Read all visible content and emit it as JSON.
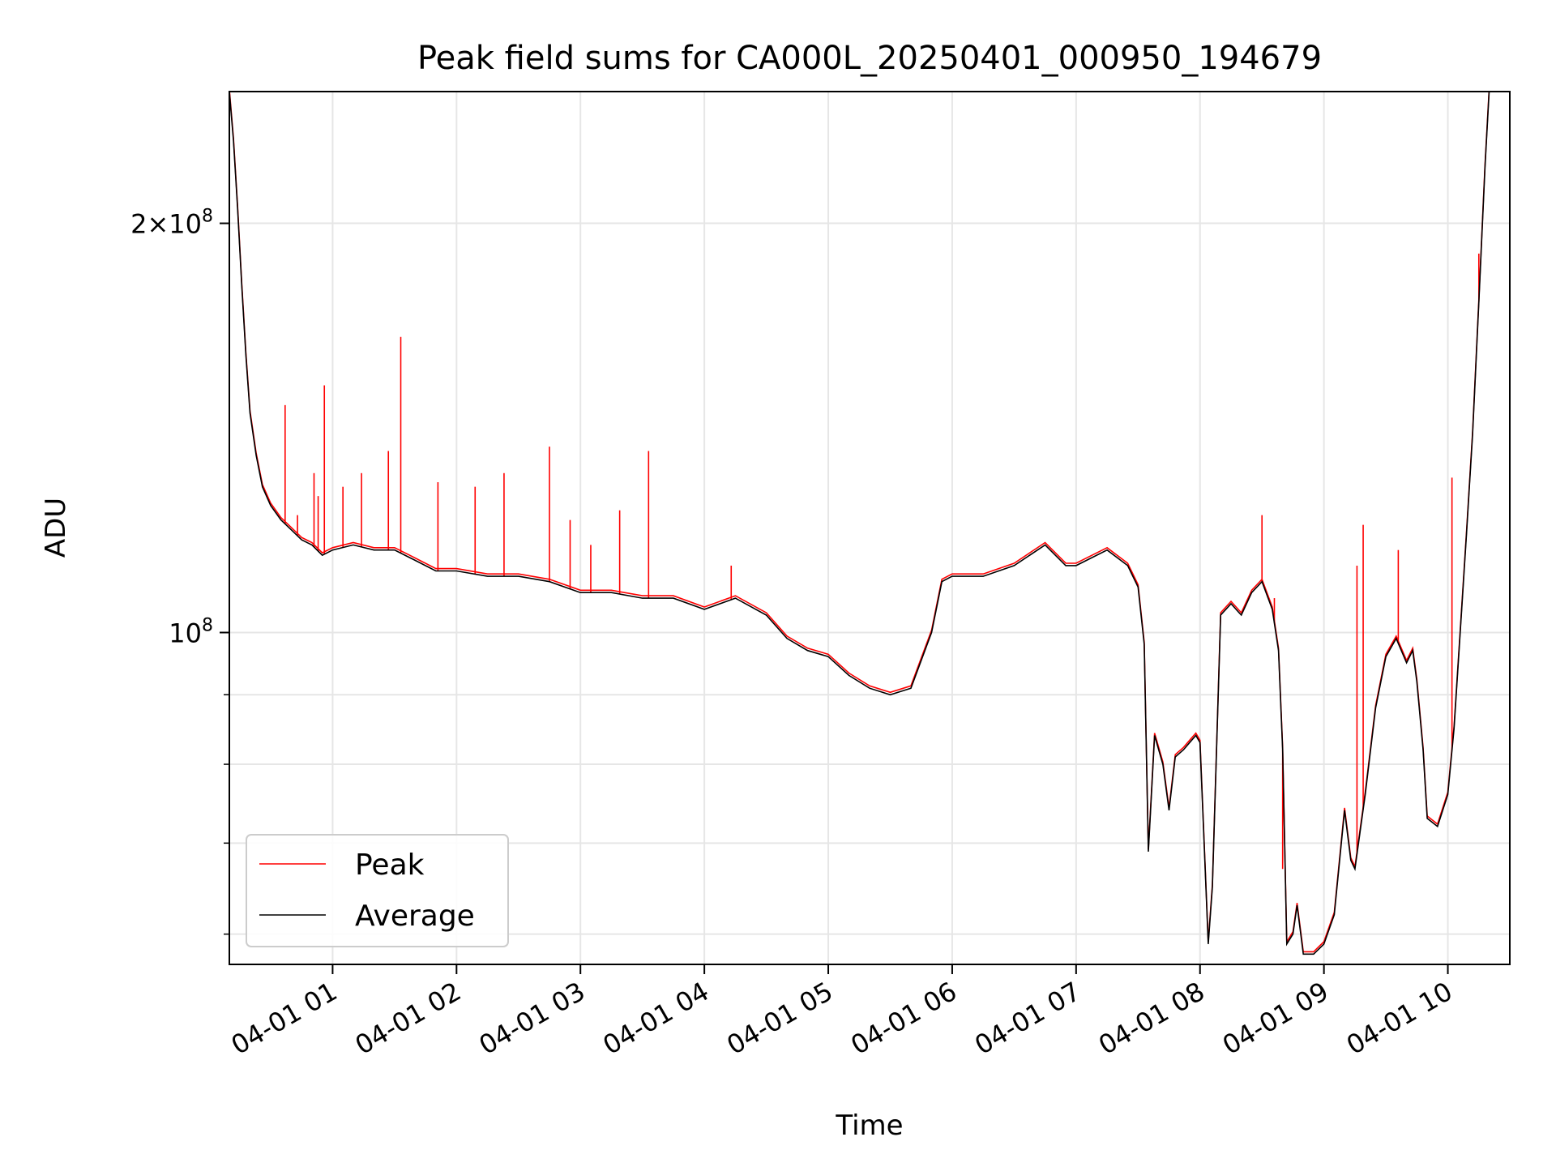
{
  "chart_data": {
    "type": "line",
    "title": "Peak field sums for CA000L_20250401_000950_194679",
    "xlabel": "Time",
    "ylabel": "ADU",
    "y_scale": "log",
    "ylim": [
      57000000,
      250000000
    ],
    "xlim": [
      "2025-04-01 00:10",
      "2025-04-01 10:30"
    ],
    "grid": true,
    "legend_position": "lower-left",
    "x_tick_labels": [
      "04-01 01",
      "04-01 02",
      "04-01 03",
      "04-01 04",
      "04-01 05",
      "04-01 06",
      "04-01 07",
      "04-01 08",
      "04-01 09",
      "04-01 10"
    ],
    "x_ticks": [
      "2025-04-01 01:00",
      "2025-04-01 02:00",
      "2025-04-01 03:00",
      "2025-04-01 04:00",
      "2025-04-01 05:00",
      "2025-04-01 06:00",
      "2025-04-01 07:00",
      "2025-04-01 08:00",
      "2025-04-01 09:00",
      "2025-04-01 10:00"
    ],
    "y_major_ticks": [
      {
        "value": 100000000,
        "base": "10",
        "exp": "8"
      },
      {
        "value": 200000000,
        "base": "2×10",
        "exp": "8"
      }
    ],
    "y_minor_ticks": [
      60000000,
      70000000,
      80000000,
      90000000
    ],
    "colors": {
      "peak": "#ff0000",
      "average": "#000000"
    },
    "series": [
      {
        "name": "Average",
        "color": "#000000",
        "points": [
          [
            "2025-04-01 00:10",
            250000000
          ],
          [
            "2025-04-01 00:12",
            230000000
          ],
          [
            "2025-04-01 00:14",
            205000000
          ],
          [
            "2025-04-01 00:16",
            180000000
          ],
          [
            "2025-04-01 00:18",
            160000000
          ],
          [
            "2025-04-01 00:20",
            145000000
          ],
          [
            "2025-04-01 00:23",
            135000000
          ],
          [
            "2025-04-01 00:26",
            128000000
          ],
          [
            "2025-04-01 00:30",
            124000000
          ],
          [
            "2025-04-01 00:35",
            121000000
          ],
          [
            "2025-04-01 00:40",
            119000000
          ],
          [
            "2025-04-01 00:45",
            117000000
          ],
          [
            "2025-04-01 00:50",
            116000000
          ],
          [
            "2025-04-01 00:55",
            114000000
          ],
          [
            "2025-04-01 01:00",
            115000000
          ],
          [
            "2025-04-01 01:10",
            116000000
          ],
          [
            "2025-04-01 01:20",
            115000000
          ],
          [
            "2025-04-01 01:30",
            115000000
          ],
          [
            "2025-04-01 01:40",
            113000000
          ],
          [
            "2025-04-01 01:50",
            111000000
          ],
          [
            "2025-04-01 02:00",
            111000000
          ],
          [
            "2025-04-01 02:15",
            110000000
          ],
          [
            "2025-04-01 02:30",
            110000000
          ],
          [
            "2025-04-01 02:45",
            109000000
          ],
          [
            "2025-04-01 03:00",
            107000000
          ],
          [
            "2025-04-01 03:15",
            107000000
          ],
          [
            "2025-04-01 03:30",
            106000000
          ],
          [
            "2025-04-01 03:45",
            106000000
          ],
          [
            "2025-04-01 04:00",
            104000000
          ],
          [
            "2025-04-01 04:15",
            106000000
          ],
          [
            "2025-04-01 04:30",
            103000000
          ],
          [
            "2025-04-01 04:40",
            99000000
          ],
          [
            "2025-04-01 04:50",
            97000000
          ],
          [
            "2025-04-01 05:00",
            96000000
          ],
          [
            "2025-04-01 05:10",
            93000000
          ],
          [
            "2025-04-01 05:20",
            91000000
          ],
          [
            "2025-04-01 05:30",
            90000000
          ],
          [
            "2025-04-01 05:40",
            91000000
          ],
          [
            "2025-04-01 05:50",
            100000000
          ],
          [
            "2025-04-01 05:55",
            109000000
          ],
          [
            "2025-04-01 06:00",
            110000000
          ],
          [
            "2025-04-01 06:15",
            110000000
          ],
          [
            "2025-04-01 06:30",
            112000000
          ],
          [
            "2025-04-01 06:45",
            116000000
          ],
          [
            "2025-04-01 06:55",
            112000000
          ],
          [
            "2025-04-01 07:00",
            112000000
          ],
          [
            "2025-04-01 07:15",
            115000000
          ],
          [
            "2025-04-01 07:25",
            112000000
          ],
          [
            "2025-04-01 07:30",
            108000000
          ],
          [
            "2025-04-01 07:33",
            98000000
          ],
          [
            "2025-04-01 07:35",
            69000000
          ],
          [
            "2025-04-01 07:38",
            84000000
          ],
          [
            "2025-04-01 07:42",
            80000000
          ],
          [
            "2025-04-01 07:45",
            74000000
          ],
          [
            "2025-04-01 07:48",
            81000000
          ],
          [
            "2025-04-01 07:52",
            82000000
          ],
          [
            "2025-04-01 07:55",
            83000000
          ],
          [
            "2025-04-01 07:58",
            84000000
          ],
          [
            "2025-04-01 08:00",
            83000000
          ],
          [
            "2025-04-01 08:02",
            70000000
          ],
          [
            "2025-04-01 08:04",
            59000000
          ],
          [
            "2025-04-01 08:06",
            65000000
          ],
          [
            "2025-04-01 08:10",
            103000000
          ],
          [
            "2025-04-01 08:15",
            105000000
          ],
          [
            "2025-04-01 08:20",
            103000000
          ],
          [
            "2025-04-01 08:25",
            107000000
          ],
          [
            "2025-04-01 08:30",
            109000000
          ],
          [
            "2025-04-01 08:35",
            104000000
          ],
          [
            "2025-04-01 08:38",
            97000000
          ],
          [
            "2025-04-01 08:40",
            82000000
          ],
          [
            "2025-04-01 08:42",
            59000000
          ],
          [
            "2025-04-01 08:45",
            60000000
          ],
          [
            "2025-04-01 08:47",
            63000000
          ],
          [
            "2025-04-01 08:50",
            58000000
          ],
          [
            "2025-04-01 08:55",
            58000000
          ],
          [
            "2025-04-01 09:00",
            59000000
          ],
          [
            "2025-04-01 09:05",
            62000000
          ],
          [
            "2025-04-01 09:10",
            74000000
          ],
          [
            "2025-04-01 09:13",
            68000000
          ],
          [
            "2025-04-01 09:15",
            67000000
          ],
          [
            "2025-04-01 09:20",
            76000000
          ],
          [
            "2025-04-01 09:25",
            88000000
          ],
          [
            "2025-04-01 09:30",
            96000000
          ],
          [
            "2025-04-01 09:35",
            99000000
          ],
          [
            "2025-04-01 09:40",
            95000000
          ],
          [
            "2025-04-01 09:43",
            97000000
          ],
          [
            "2025-04-01 09:45",
            92000000
          ],
          [
            "2025-04-01 09:48",
            82000000
          ],
          [
            "2025-04-01 09:50",
            73000000
          ],
          [
            "2025-04-01 09:55",
            72000000
          ],
          [
            "2025-04-01 10:00",
            76000000
          ],
          [
            "2025-04-01 10:03",
            85000000
          ],
          [
            "2025-04-01 10:06",
            100000000
          ],
          [
            "2025-04-01 10:09",
            118000000
          ],
          [
            "2025-04-01 10:12",
            140000000
          ],
          [
            "2025-04-01 10:15",
            175000000
          ],
          [
            "2025-04-01 10:18",
            220000000
          ],
          [
            "2025-04-01 10:20",
            250000000
          ]
        ]
      },
      {
        "name": "Peak",
        "color": "#ff0000",
        "description_note": "Peak closely follows Average with isolated upward spikes",
        "spikes": [
          [
            "2025-04-01 00:37",
            147000000
          ],
          [
            "2025-04-01 00:43",
            122000000
          ],
          [
            "2025-04-01 00:51",
            131000000
          ],
          [
            "2025-04-01 00:53",
            126000000
          ],
          [
            "2025-04-01 00:56",
            152000000
          ],
          [
            "2025-04-01 01:05",
            128000000
          ],
          [
            "2025-04-01 01:14",
            131000000
          ],
          [
            "2025-04-01 01:27",
            136000000
          ],
          [
            "2025-04-01 01:33",
            165000000
          ],
          [
            "2025-04-01 01:51",
            129000000
          ],
          [
            "2025-04-01 02:09",
            128000000
          ],
          [
            "2025-04-01 02:23",
            131000000
          ],
          [
            "2025-04-01 02:45",
            137000000
          ],
          [
            "2025-04-01 02:55",
            121000000
          ],
          [
            "2025-04-01 03:05",
            116000000
          ],
          [
            "2025-04-01 03:19",
            123000000
          ],
          [
            "2025-04-01 03:33",
            136000000
          ],
          [
            "2025-04-01 04:13",
            112000000
          ],
          [
            "2025-04-01 08:30",
            122000000
          ],
          [
            "2025-04-01 08:36",
            106000000
          ],
          [
            "2025-04-01 08:40",
            67000000
          ],
          [
            "2025-04-01 09:16",
            112000000
          ],
          [
            "2025-04-01 09:19",
            120000000
          ],
          [
            "2025-04-01 09:36",
            115000000
          ],
          [
            "2025-04-01 10:02",
            130000000
          ],
          [
            "2025-04-01 10:15",
            190000000
          ]
        ]
      }
    ]
  }
}
